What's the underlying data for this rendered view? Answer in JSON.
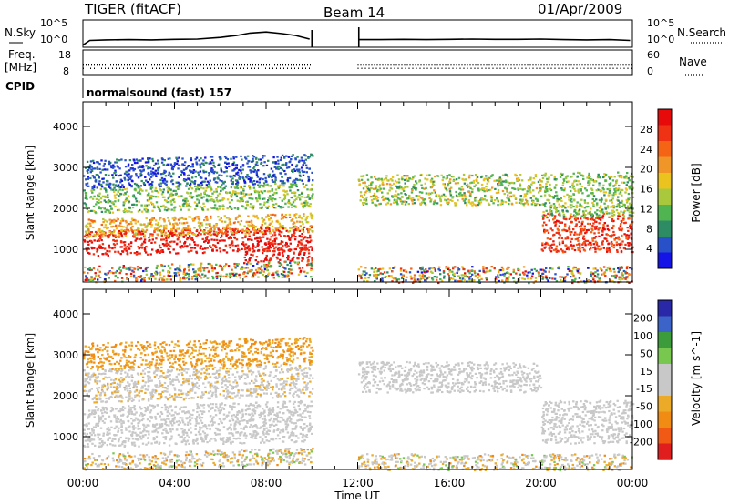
{
  "header": {
    "station": "TIGER (fitACF)",
    "beam": "Beam 14",
    "date": "01/Apr/2009"
  },
  "labels": {
    "n_sky": "N.Sky",
    "n_search": "N.Search",
    "freq_line1": "Freq.",
    "freq_line2": "[MHz]",
    "nave": "Nave",
    "cpid": "CPID",
    "cpid_value": "normalsound (fast) 157"
  },
  "colors": {
    "power": [
      "#1414e6",
      "#2850c8",
      "#2d8c64",
      "#50b450",
      "#aac83c",
      "#ebc31e",
      "#f09628",
      "#f56414",
      "#f03214",
      "#e60a0a"
    ],
    "velocity": [
      "#2828a8",
      "#3c64c8",
      "#3c9c3c",
      "#78c850",
      "#c8c8c8",
      "#c8c8c8",
      "#ebaa28",
      "#f08c14",
      "#f05a14",
      "#e11e1e"
    ]
  },
  "chart_data": [
    {
      "type": "line",
      "panel": "N.Sky / N.Search",
      "ylabel_left": "N.Sky",
      "ylabel_right": "N.Search",
      "y_ticks_left": [
        "10^5",
        "10^0"
      ],
      "y_ticks_right": [
        "10^5",
        "10^0"
      ],
      "x_hours": [
        0,
        0.3,
        1,
        2,
        3,
        4,
        5,
        6,
        6.7,
        7.3,
        8,
        8.7,
        9.3,
        9.9,
        12.05,
        13,
        14,
        15,
        16,
        17,
        18,
        19,
        20,
        21,
        22,
        23,
        23.9
      ],
      "values_norm": [
        0.08,
        0.25,
        0.27,
        0.28,
        0.27,
        0.29,
        0.3,
        0.36,
        0.43,
        0.52,
        0.56,
        0.5,
        0.43,
        0.3,
        0.28,
        0.28,
        0.29,
        0.28,
        0.29,
        0.3,
        0.29,
        0.29,
        0.3,
        0.28,
        0.27,
        0.28,
        0.25
      ]
    },
    {
      "type": "scatter",
      "panel": "Freq. / Nave",
      "ylabel_left": "Freq. [MHz]",
      "ylabel_right": "Nave",
      "y_ticks_left": [
        "18",
        "8"
      ],
      "y_ticks_right": [
        "60",
        "0"
      ],
      "freq_mhz": 12.2,
      "nave": 15
    },
    {
      "type": "heatmap",
      "panel": "Power",
      "ylabel": "Slant Range [km]",
      "y_ticks": [
        "1000",
        "2000",
        "3000",
        "4000"
      ],
      "ylim": [
        200,
        4600
      ],
      "x_range_hours": [
        0,
        24
      ],
      "colorbar_label": "Power [dB]",
      "colorbar_ticks": [
        "4",
        "8",
        "12",
        "16",
        "20",
        "24",
        "28"
      ],
      "data_gap_hours": [
        10.0,
        12.0
      ],
      "bands": [
        {
          "t": [
            0,
            10
          ],
          "r": [
            850,
            1450
          ],
          "level": [
            8,
            9
          ]
        },
        {
          "t": [
            0,
            10
          ],
          "r": [
            1300,
            1750
          ],
          "level": [
            4,
            7
          ]
        },
        {
          "t": [
            0,
            10
          ],
          "r": [
            1900,
            2500
          ],
          "level": [
            2,
            5
          ]
        },
        {
          "t": [
            0,
            10
          ],
          "r": [
            2500,
            3200
          ],
          "level": [
            0,
            2
          ]
        },
        {
          "t": [
            7,
            10
          ],
          "r": [
            600,
            950
          ],
          "level": [
            8,
            9
          ]
        },
        {
          "t": [
            12,
            20
          ],
          "r": [
            2100,
            2850
          ],
          "level": [
            2,
            6
          ]
        },
        {
          "t": [
            20,
            24
          ],
          "r": [
            950,
            1900
          ],
          "level": [
            7,
            9
          ]
        },
        {
          "t": [
            20,
            24
          ],
          "r": [
            1800,
            2900
          ],
          "level": [
            2,
            5
          ]
        },
        {
          "t": [
            0,
            24
          ],
          "r": [
            200,
            600
          ],
          "level": [
            0,
            9
          ]
        }
      ]
    },
    {
      "type": "heatmap",
      "panel": "Velocity",
      "ylabel": "Slant Range [km]",
      "y_ticks": [
        "1000",
        "2000",
        "3000",
        "4000"
      ],
      "ylim": [
        200,
        4600
      ],
      "x_range_hours": [
        0,
        24
      ],
      "xlabel": "Time UT",
      "x_ticks": [
        "00:00",
        "04:00",
        "08:00",
        "12:00",
        "16:00",
        "20:00",
        "00:00"
      ],
      "colorbar_label": "Velocity [m s^-1]",
      "colorbar_ticks": [
        "200",
        "100",
        "50",
        "15",
        "-15",
        "-50",
        "-100",
        "-200"
      ],
      "data_gap_hours": [
        10.0,
        12.0
      ],
      "bands": [
        {
          "t": [
            0,
            10
          ],
          "r": [
            750,
            1750
          ],
          "level": [
            4,
            5
          ]
        },
        {
          "t": [
            0,
            10
          ],
          "r": [
            1850,
            2650
          ],
          "level": [
            4,
            6
          ]
        },
        {
          "t": [
            0,
            10
          ],
          "r": [
            2650,
            3300
          ],
          "level": [
            6,
            7
          ]
        },
        {
          "t": [
            12,
            20
          ],
          "r": [
            2100,
            2850
          ],
          "level": [
            4,
            5
          ]
        },
        {
          "t": [
            20,
            24
          ],
          "r": [
            850,
            1900
          ],
          "level": [
            4,
            5
          ]
        },
        {
          "t": [
            0,
            24
          ],
          "r": [
            200,
            600
          ],
          "level": [
            3,
            7
          ]
        }
      ]
    }
  ]
}
